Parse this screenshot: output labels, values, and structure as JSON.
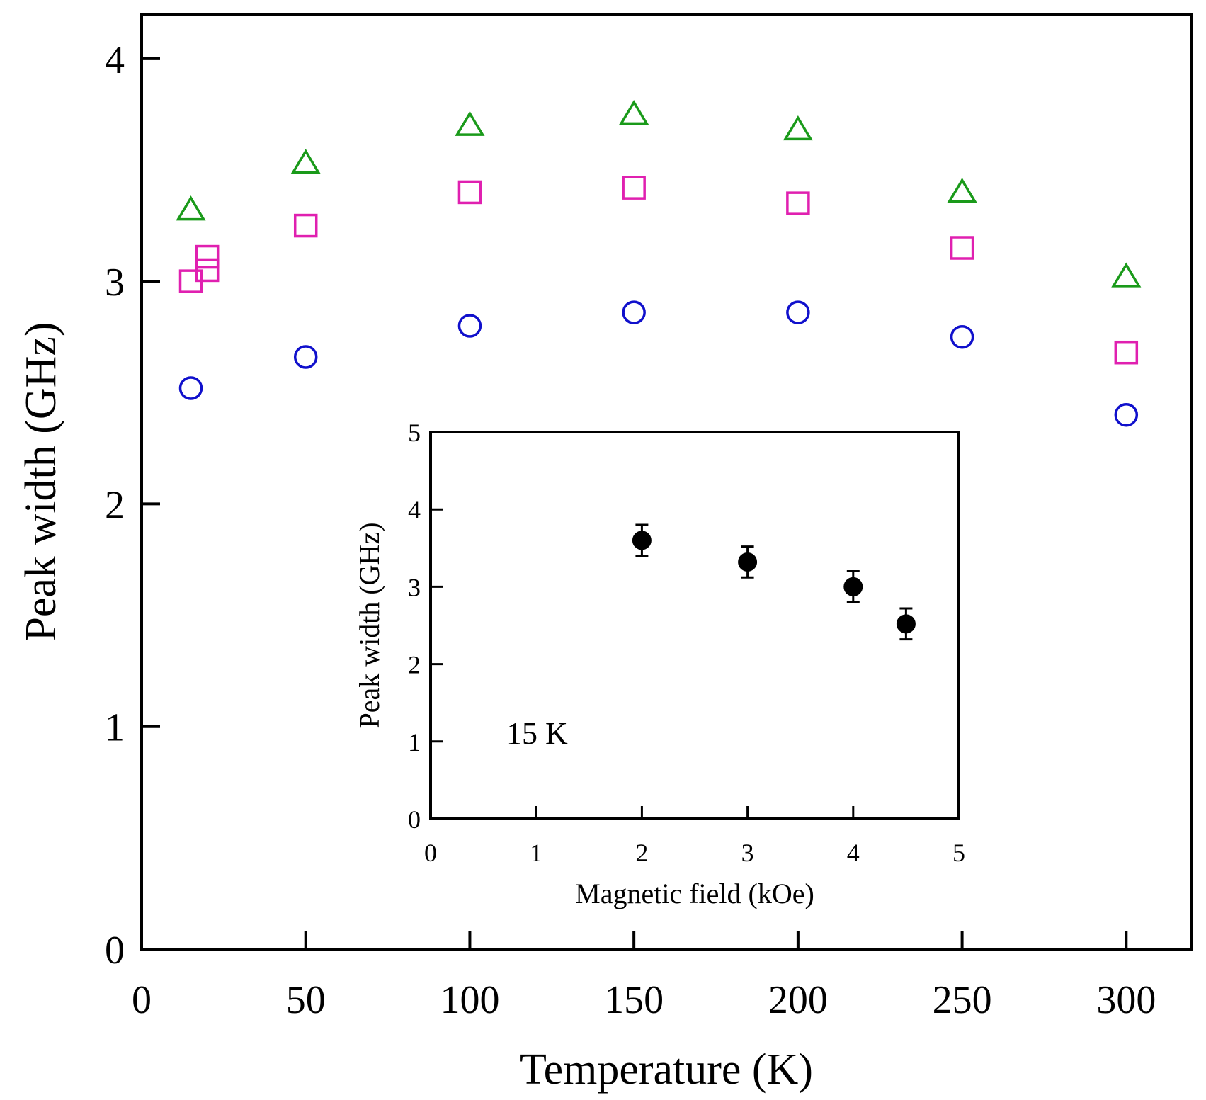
{
  "chart_data": [
    {
      "id": "main",
      "type": "scatter",
      "title": "",
      "xlabel": "Temperature (K)",
      "ylabel": "Peak width (GHz)",
      "xlim": [
        0,
        320
      ],
      "ylim": [
        0,
        4.2
      ],
      "x_ticks": [
        0,
        50,
        100,
        150,
        200,
        250,
        300
      ],
      "y_ticks": [
        0,
        1,
        2,
        3,
        4
      ],
      "x_tick_labels": [
        "0",
        "50",
        "100",
        "150",
        "200",
        "250",
        "300"
      ],
      "y_tick_labels": [
        "0",
        "1",
        "2",
        "3",
        "4"
      ],
      "grid": false,
      "series": [
        {
          "name": "triangles",
          "marker": "triangle-open",
          "color": "#1a9a1a",
          "x": [
            15,
            50,
            100,
            150,
            200,
            250,
            300
          ],
          "y": [
            3.32,
            3.53,
            3.7,
            3.75,
            3.68,
            3.4,
            3.02
          ]
        },
        {
          "name": "squares",
          "marker": "square-open",
          "color": "#e020b0",
          "x": [
            15,
            20,
            20,
            50,
            100,
            150,
            200,
            250,
            300
          ],
          "y": [
            3.0,
            3.05,
            3.11,
            3.25,
            3.4,
            3.42,
            3.35,
            3.15,
            2.68
          ]
        },
        {
          "name": "circles",
          "marker": "circle-open",
          "color": "#1010cc",
          "x": [
            15,
            50,
            100,
            150,
            200,
            250,
            300
          ],
          "y": [
            2.52,
            2.66,
            2.8,
            2.86,
            2.86,
            2.75,
            2.4
          ]
        }
      ]
    },
    {
      "id": "inset",
      "type": "scatter",
      "title": "",
      "xlabel": "Magnetic field (kOe)",
      "ylabel": "Peak width (GHz)",
      "xlim": [
        0,
        5
      ],
      "ylim": [
        0,
        5
      ],
      "x_ticks": [
        0,
        1,
        2,
        3,
        4,
        5
      ],
      "y_ticks": [
        0,
        1,
        2,
        3,
        4,
        5
      ],
      "x_tick_labels": [
        "0",
        "1",
        "2",
        "3",
        "4",
        "5"
      ],
      "y_tick_labels": [
        "0",
        "1",
        "2",
        "3",
        "4",
        "5"
      ],
      "grid": false,
      "annotation": "15 K",
      "series": [
        {
          "name": "15 K",
          "marker": "circle-filled",
          "color": "#000000",
          "x": [
            2,
            3,
            4,
            4.5
          ],
          "y": [
            3.6,
            3.32,
            3.0,
            2.52
          ],
          "yerr": [
            0.2,
            0.2,
            0.2,
            0.2
          ]
        }
      ]
    }
  ]
}
